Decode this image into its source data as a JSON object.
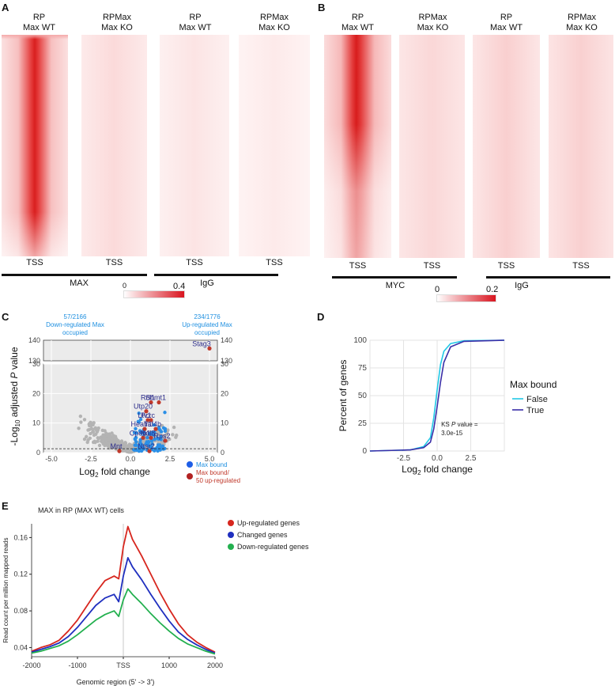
{
  "panelA": {
    "label": "A",
    "columns": [
      {
        "l1": "RP",
        "l2": "Max WT"
      },
      {
        "l1": "RPMax",
        "l2": "Max KO"
      },
      {
        "l1": "RP",
        "l2": "Max WT"
      },
      {
        "l1": "RPMax",
        "l2": "Max KO"
      }
    ],
    "tss": "TSS",
    "group1": "MAX",
    "group2": "IgG",
    "scale_min": "0",
    "scale_max": "0.4"
  },
  "panelB": {
    "label": "B",
    "columns": [
      {
        "l1": "RP",
        "l2": "Max WT"
      },
      {
        "l1": "RPMax",
        "l2": "Max KO"
      },
      {
        "l1": "RP",
        "l2": "Max WT"
      },
      {
        "l1": "RPMax",
        "l2": "Max KO"
      }
    ],
    "tss": "TSS",
    "group1": "MYC",
    "group2": "IgG",
    "scale_min": "0",
    "scale_max": "0.2"
  },
  "panelC": {
    "label": "C",
    "down_count": "57/2166",
    "down_text": "Down-regulated Max occupied",
    "up_count": "234/1776",
    "up_text": "Up-regulated Max occupied",
    "ylabel_pre": "-Log",
    "ylabel_sub": "10",
    "ylabel_post": " adjusted ",
    "ylabel_p": "P",
    "ylabel_end": " value",
    "xlabel_pre": "Log",
    "xlabel_sub": "2",
    "xlabel_post": " fold change",
    "legend_blue": "Max bound",
    "legend_red": "Max bound/ 50 up-regulated",
    "genes": [
      "Stag3",
      "Rcl1",
      "Shmt1",
      "Utp20",
      "Ltv1",
      "Pcrc",
      "Heatr1",
      "Taf4b",
      "Cpeb1",
      "Nol8",
      "Rps2",
      "Mnt",
      "Ntsr2"
    ],
    "chart_data": {
      "type": "scatter",
      "xlabel": "Log2 fold change",
      "ylabel": "-Log10 adjusted P value",
      "xlim": [
        -5.5,
        5.5
      ],
      "ylim_lower": [
        0,
        30
      ],
      "ylim_upper": [
        130,
        140
      ],
      "x_ticks": [
        "-5.0",
        "-2.5",
        "0.0",
        "2.5",
        "5.0"
      ],
      "y_ticks_lower": [
        "0",
        "10",
        "20",
        "30"
      ],
      "y_ticks_upper": [
        "130",
        "140"
      ],
      "threshold_y": 1.3,
      "labeled_points": [
        {
          "gene": "Stag3",
          "x": 5.0,
          "y": 136
        },
        {
          "gene": "Rcl1",
          "x": 1.3,
          "y": 17
        },
        {
          "gene": "Shmt1",
          "x": 1.8,
          "y": 17
        },
        {
          "gene": "Utp20",
          "x": 1.0,
          "y": 14
        },
        {
          "gene": "Ltv1",
          "x": 1.1,
          "y": 11
        },
        {
          "gene": "Pcrc",
          "x": 1.3,
          "y": 11
        },
        {
          "gene": "Heatr1",
          "x": 0.9,
          "y": 8
        },
        {
          "gene": "Taf4b",
          "x": 1.6,
          "y": 8
        },
        {
          "gene": "Cpeb1",
          "x": 0.8,
          "y": 5
        },
        {
          "gene": "Nol8",
          "x": 1.3,
          "y": 5
        },
        {
          "gene": "Rps2",
          "x": 2.2,
          "y": 4
        },
        {
          "gene": "Mnt",
          "x": -0.7,
          "y": 0.5
        },
        {
          "gene": "Ntsr2",
          "x": 1.2,
          "y": 0.5
        }
      ]
    }
  },
  "panelD": {
    "label": "D",
    "ylabel": "Percent of genes",
    "xlabel_pre": "Log",
    "xlabel_sub": "2",
    "xlabel_post": " fold change",
    "legend_title": "Max bound",
    "legend_false": "False",
    "legend_true": "True",
    "ks_line1_pre": "KS ",
    "ks_line1_p": "P",
    "ks_line1_post": " value =",
    "ks_line2": "3.0e-15",
    "chart_data": {
      "type": "line",
      "title": "",
      "xlabel": "Log2 fold change",
      "ylabel": "Percent of genes",
      "xlim": [
        -5,
        5
      ],
      "ylim": [
        0,
        100
      ],
      "x_ticks": [
        "-2.5",
        "0.0",
        "2.5"
      ],
      "y_ticks": [
        "0",
        "25",
        "50",
        "75",
        "100"
      ],
      "series": [
        {
          "name": "False",
          "color": "#22c8e6",
          "x": [
            -5,
            -2,
            -1,
            -0.5,
            -0.25,
            0,
            0.25,
            0.5,
            1,
            2,
            5
          ],
          "y": [
            0,
            1,
            4,
            12,
            30,
            55,
            78,
            90,
            97,
            99.5,
            100
          ]
        },
        {
          "name": "True",
          "color": "#3a2fa8",
          "x": [
            -5,
            -2,
            -1,
            -0.5,
            -0.25,
            0,
            0.25,
            0.5,
            1,
            2,
            5
          ],
          "y": [
            0,
            1,
            3,
            8,
            20,
            40,
            62,
            80,
            94,
            99,
            100
          ]
        }
      ]
    }
  },
  "panelE": {
    "label": "E",
    "title": "MAX in RP (MAX WT) cells",
    "ylabel": "Read count per million mapped reads",
    "xlabel": "Genomic region (5' -> 3')",
    "legend": [
      {
        "name": "Up-regulated genes",
        "color": "#d7261e"
      },
      {
        "name": "Changed genes",
        "color": "#1f2fbf"
      },
      {
        "name": "Down-regulated genes",
        "color": "#23b04f"
      }
    ],
    "chart_data": {
      "type": "line",
      "xlabel": "Genomic region (5' -> 3')",
      "ylabel": "Read count per million mapped reads",
      "xlim": [
        -2000,
        2000
      ],
      "ylim": [
        0.03,
        0.175
      ],
      "x_ticks": [
        "-2000",
        "-1000",
        "TSS",
        "1000",
        "2000"
      ],
      "y_ticks": [
        "0.04",
        "0.08",
        "0.12",
        "0.16"
      ],
      "x": [
        -2000,
        -1800,
        -1600,
        -1400,
        -1200,
        -1000,
        -800,
        -600,
        -400,
        -200,
        -100,
        0,
        100,
        200,
        400,
        600,
        800,
        1000,
        1200,
        1400,
        1600,
        1800,
        2000
      ],
      "series": [
        {
          "name": "Up-regulated genes",
          "color": "#d7261e",
          "values": [
            0.036,
            0.04,
            0.043,
            0.048,
            0.058,
            0.07,
            0.085,
            0.1,
            0.113,
            0.118,
            0.115,
            0.15,
            0.172,
            0.158,
            0.14,
            0.12,
            0.1,
            0.082,
            0.066,
            0.054,
            0.046,
            0.04,
            0.035
          ]
        },
        {
          "name": "Changed genes",
          "color": "#1f2fbf",
          "values": [
            0.035,
            0.038,
            0.041,
            0.045,
            0.052,
            0.062,
            0.074,
            0.086,
            0.094,
            0.098,
            0.09,
            0.118,
            0.138,
            0.128,
            0.114,
            0.098,
            0.083,
            0.069,
            0.057,
            0.049,
            0.043,
            0.038,
            0.034
          ]
        },
        {
          "name": "Down-regulated genes",
          "color": "#23b04f",
          "values": [
            0.034,
            0.036,
            0.039,
            0.042,
            0.047,
            0.054,
            0.062,
            0.07,
            0.076,
            0.08,
            0.074,
            0.092,
            0.104,
            0.098,
            0.088,
            0.077,
            0.067,
            0.058,
            0.05,
            0.044,
            0.04,
            0.036,
            0.033
          ]
        }
      ]
    }
  }
}
